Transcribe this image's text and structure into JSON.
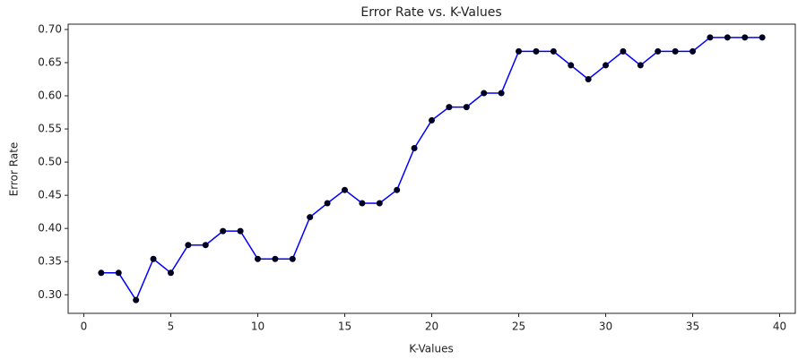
{
  "chart_data": {
    "type": "line",
    "title": "Error Rate vs. K-Values",
    "x_label": "K-Values",
    "y_label": "Error Rate",
    "x": [
      1,
      2,
      3,
      4,
      5,
      6,
      7,
      8,
      9,
      10,
      11,
      12,
      13,
      14,
      15,
      16,
      17,
      18,
      19,
      20,
      21,
      22,
      23,
      24,
      25,
      26,
      27,
      28,
      29,
      30,
      31,
      32,
      33,
      34,
      35,
      36,
      37,
      38,
      39
    ],
    "series": [
      {
        "name": "Error Rate",
        "color": "#0000ff",
        "marker_color": "#000020",
        "values": [
          0.333,
          0.333,
          0.292,
          0.354,
          0.333,
          0.375,
          0.375,
          0.396,
          0.396,
          0.354,
          0.354,
          0.354,
          0.417,
          0.438,
          0.458,
          0.438,
          0.438,
          0.458,
          0.521,
          0.563,
          0.583,
          0.583,
          0.604,
          0.604,
          0.667,
          0.667,
          0.667,
          0.646,
          0.625,
          0.646,
          0.667,
          0.646,
          0.667,
          0.667,
          0.667,
          0.688,
          0.688,
          0.688,
          0.688
        ]
      }
    ],
    "xlim": [
      -0.9,
      40.9
    ],
    "xticks": [
      0,
      5,
      10,
      15,
      20,
      25,
      30,
      35,
      40
    ],
    "ylim": [
      0.272,
      0.708
    ],
    "yticks": [
      {
        "value": 0.3,
        "label": "0.30"
      },
      {
        "value": 0.35,
        "label": "0.35"
      },
      {
        "value": 0.4,
        "label": "0.40"
      },
      {
        "value": 0.45,
        "label": "0.45"
      },
      {
        "value": 0.5,
        "label": "0.50"
      },
      {
        "value": 0.55,
        "label": "0.55"
      },
      {
        "value": 0.6,
        "label": "0.60"
      },
      {
        "value": 0.65,
        "label": "0.65"
      },
      {
        "value": 0.7,
        "label": "0.70"
      }
    ],
    "grid": false
  }
}
